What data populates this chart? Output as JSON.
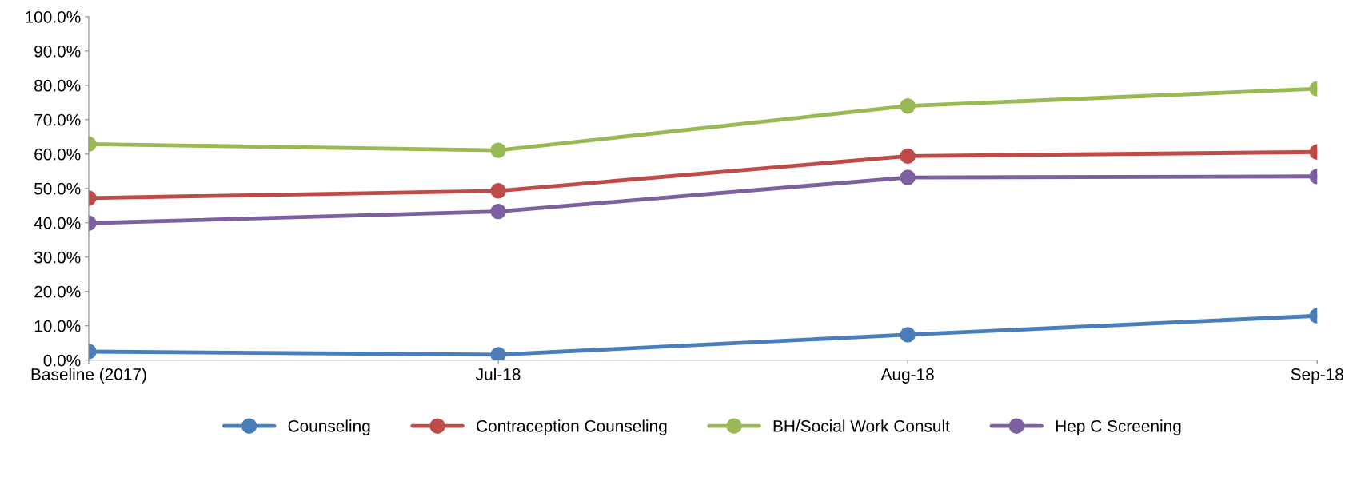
{
  "chart_data": {
    "type": "line",
    "categories": [
      "Baseline (2017)",
      "Jul-18",
      "Aug-18",
      "Sep-18"
    ],
    "series": [
      {
        "name": "Counseling",
        "color": "#4a7ebb",
        "values": [
          2.5,
          1.6,
          7.4,
          12.9
        ]
      },
      {
        "name": "Contraception Counseling",
        "color": "#be4b48",
        "values": [
          47.2,
          49.3,
          59.4,
          60.6
        ]
      },
      {
        "name": "BH/Social Work Consult",
        "color": "#98b954",
        "values": [
          62.9,
          61.1,
          74.0,
          79.0
        ]
      },
      {
        "name": "Hep C Screening",
        "color": "#7d60a0",
        "values": [
          39.9,
          43.3,
          53.2,
          53.5
        ]
      }
    ],
    "ylim": [
      0,
      100
    ],
    "yticks": [
      {
        "value": 0,
        "label": "0.0%"
      },
      {
        "value": 10,
        "label": "10.0%"
      },
      {
        "value": 20,
        "label": "20.0%"
      },
      {
        "value": 30,
        "label": "30.0%"
      },
      {
        "value": 40,
        "label": "40.0%"
      },
      {
        "value": 50,
        "label": "50.0%"
      },
      {
        "value": 60,
        "label": "60.0%"
      },
      {
        "value": 70,
        "label": "70.0%"
      },
      {
        "value": 80,
        "label": "80.0%"
      },
      {
        "value": 90,
        "label": "90.0%"
      },
      {
        "value": 100,
        "label": "100.0%"
      }
    ],
    "marker": "circle",
    "line_style": "solid",
    "legend": "bottom",
    "grid": false
  }
}
